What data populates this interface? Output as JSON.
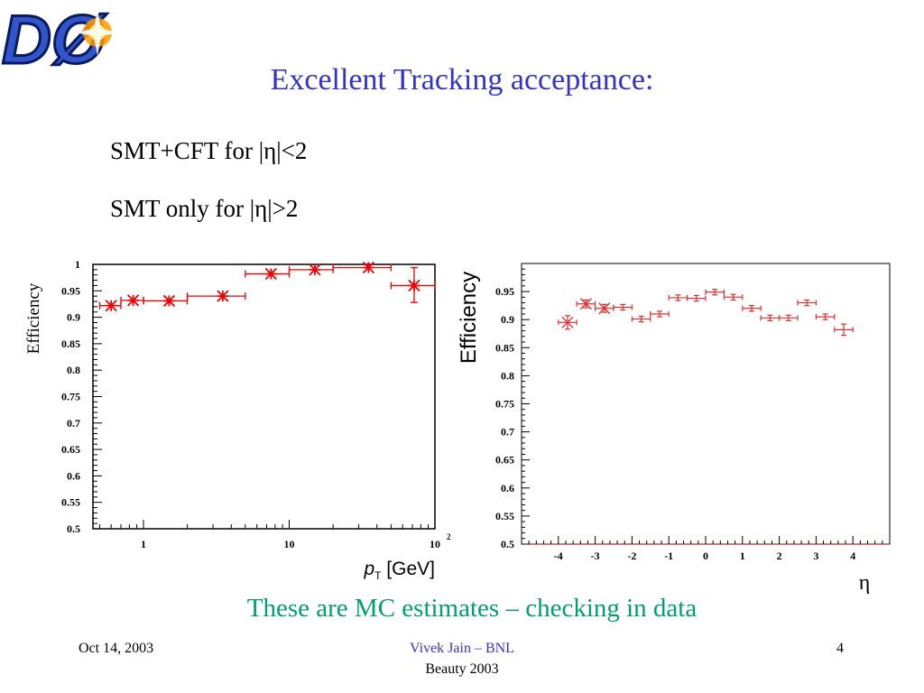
{
  "slide": {
    "title": "Excellent Tracking acceptance:",
    "bullets": [
      "SMT+CFT for |η|<2",
      "SMT only for |η|>2"
    ],
    "note": "These are MC estimates – checking in data",
    "footer": {
      "date": "Oct 14, 2003",
      "author": "Vivek Jain – BNL",
      "conference": "Beauty 2003",
      "page": "4"
    },
    "logo": {
      "text": "DØ",
      "colors": {
        "letters": "#3355cc",
        "outline": "#0a1a60",
        "flare": "#ff9a00"
      }
    }
  },
  "colors": {
    "accent": "#3333cc",
    "note": "#00a070",
    "marker": "#ee0000"
  },
  "chart_data": [
    {
      "type": "scatter",
      "xlabel": "p_T [GeV]",
      "xlabel_main": "p",
      "xlabel_sub": "T",
      "xlabel_unit": "[GeV]",
      "ylabel": "Efficiency",
      "xscale": "log",
      "xlim": [
        0.45,
        100
      ],
      "ylim": [
        0.5,
        1.0
      ],
      "xticklabels": [
        {
          "v": 1,
          "label": "1"
        },
        {
          "v": 10,
          "label": "10"
        },
        {
          "v": 100,
          "label": "10",
          "sup": "2"
        }
      ],
      "yticklabels": [
        "0.5",
        "0.55",
        "0.6",
        "0.65",
        "0.7",
        "0.75",
        "0.8",
        "0.85",
        "0.9",
        "0.95",
        "1"
      ],
      "grid": false,
      "marker_style": "star",
      "points": [
        {
          "x": 0.6,
          "y": 0.922,
          "xlo": 0.5,
          "xhi": 0.7,
          "ylo": 0.918,
          "yhi": 0.926
        },
        {
          "x": 0.85,
          "y": 0.932,
          "xlo": 0.7,
          "xhi": 1.0,
          "ylo": 0.928,
          "yhi": 0.936
        },
        {
          "x": 1.5,
          "y": 0.931,
          "xlo": 1.0,
          "xhi": 2.0,
          "ylo": 0.927,
          "yhi": 0.935
        },
        {
          "x": 3.5,
          "y": 0.94,
          "xlo": 2.0,
          "xhi": 5.0,
          "ylo": 0.936,
          "yhi": 0.944
        },
        {
          "x": 7.5,
          "y": 0.982,
          "xlo": 5.0,
          "xhi": 10.0,
          "ylo": 0.978,
          "yhi": 0.986
        },
        {
          "x": 15,
          "y": 0.99,
          "xlo": 10,
          "xhi": 20,
          "ylo": 0.986,
          "yhi": 0.994
        },
        {
          "x": 35,
          "y": 0.994,
          "xlo": 20,
          "xhi": 50,
          "ylo": 0.991,
          "yhi": 0.998
        },
        {
          "x": 72,
          "y": 0.96,
          "xlo": 50,
          "xhi": 100,
          "ylo": 0.928,
          "yhi": 0.994
        }
      ]
    },
    {
      "type": "scatter",
      "xlabel": "η",
      "ylabel": "Efficiency",
      "xscale": "linear",
      "xlim": [
        -5,
        5
      ],
      "ylim": [
        0.5,
        1.0
      ],
      "xticklabels": [
        "-4",
        "-3",
        "-2",
        "-1",
        "0",
        "1",
        "2",
        "3",
        "4"
      ],
      "yticklabels": [
        "0.5",
        "0.55",
        "0.6",
        "0.65",
        "0.7",
        "0.75",
        "0.8",
        "0.85",
        "0.9",
        "0.95"
      ],
      "grid": false,
      "marker_style": "cross",
      "points": [
        {
          "x": -3.75,
          "y": 0.895,
          "xlo": -4.0,
          "xhi": -3.5,
          "ylo": 0.883,
          "yhi": 0.907,
          "star": true
        },
        {
          "x": -3.25,
          "y": 0.928,
          "xlo": -3.5,
          "xhi": -3.0,
          "ylo": 0.921,
          "yhi": 0.935,
          "star": true
        },
        {
          "x": -2.75,
          "y": 0.92,
          "xlo": -3.0,
          "xhi": -2.5,
          "ylo": 0.913,
          "yhi": 0.927,
          "star": true
        },
        {
          "x": -2.25,
          "y": 0.922,
          "xlo": -2.5,
          "xhi": -2.0,
          "ylo": 0.917,
          "yhi": 0.927
        },
        {
          "x": -1.75,
          "y": 0.901,
          "xlo": -2.0,
          "xhi": -1.5,
          "ylo": 0.896,
          "yhi": 0.906
        },
        {
          "x": -1.25,
          "y": 0.91,
          "xlo": -1.5,
          "xhi": -1.0,
          "ylo": 0.905,
          "yhi": 0.915
        },
        {
          "x": -0.75,
          "y": 0.939,
          "xlo": -1.0,
          "xhi": -0.5,
          "ylo": 0.934,
          "yhi": 0.944
        },
        {
          "x": -0.25,
          "y": 0.938,
          "xlo": -0.5,
          "xhi": 0.0,
          "ylo": 0.933,
          "yhi": 0.943
        },
        {
          "x": 0.25,
          "y": 0.949,
          "xlo": 0.0,
          "xhi": 0.5,
          "ylo": 0.944,
          "yhi": 0.954
        },
        {
          "x": 0.75,
          "y": 0.94,
          "xlo": 0.5,
          "xhi": 1.0,
          "ylo": 0.935,
          "yhi": 0.945
        },
        {
          "x": 1.25,
          "y": 0.92,
          "xlo": 1.0,
          "xhi": 1.5,
          "ylo": 0.915,
          "yhi": 0.925
        },
        {
          "x": 1.75,
          "y": 0.903,
          "xlo": 1.5,
          "xhi": 2.0,
          "ylo": 0.898,
          "yhi": 0.908
        },
        {
          "x": 2.25,
          "y": 0.903,
          "xlo": 2.0,
          "xhi": 2.5,
          "ylo": 0.898,
          "yhi": 0.908
        },
        {
          "x": 2.75,
          "y": 0.93,
          "xlo": 2.5,
          "xhi": 3.0,
          "ylo": 0.925,
          "yhi": 0.935
        },
        {
          "x": 3.25,
          "y": 0.905,
          "xlo": 3.0,
          "xhi": 3.5,
          "ylo": 0.9,
          "yhi": 0.91
        },
        {
          "x": 3.75,
          "y": 0.882,
          "xlo": 3.5,
          "xhi": 4.0,
          "ylo": 0.872,
          "yhi": 0.892
        }
      ]
    }
  ]
}
